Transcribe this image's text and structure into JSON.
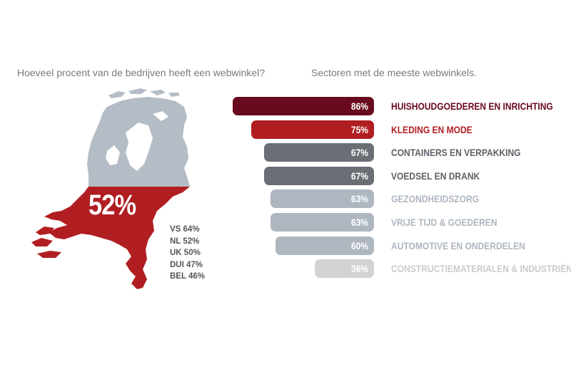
{
  "left_panel": {
    "question": "Hoeveel procent van de bedrijven heeft een webwinkel?",
    "headline_value": "52%",
    "comparison": [
      {
        "label": "VS 64%"
      },
      {
        "label": "NL 52%"
      },
      {
        "label": "UK 50%"
      },
      {
        "label": "DUI 47%"
      },
      {
        "label": "BEL 46%"
      }
    ],
    "colors": {
      "map_top": "#b4bcc5",
      "map_bottom": "#b01e22"
    }
  },
  "right_panel": {
    "question": "Sectoren met de meeste webwinkels."
  },
  "chart_data": {
    "type": "bar",
    "orientation": "horizontal",
    "title": "Sectoren met de meeste webwinkels.",
    "categories": [
      "HUISHOUDGOEDEREN EN INRICHTING",
      "KLEDING EN MODE",
      "CONTAINERS EN VERPAKKING",
      "VOEDSEL EN DRANK",
      "GEZONDHEIDSZORG",
      "VRIJE TIJD & GOEDEREN",
      "AUTOMOTIVE EN ONDERDELEN",
      "CONSTRUCTIEMATERIALEN & INDUSTRIËN"
    ],
    "values": [
      86,
      75,
      67,
      67,
      63,
      63,
      60,
      36
    ],
    "value_labels": [
      "86%",
      "75%",
      "67%",
      "67%",
      "63%",
      "63%",
      "60%",
      "36%"
    ],
    "unit": "%",
    "colors": [
      "#6a0a1e",
      "#b01e22",
      "#6b6e75",
      "#6b6e75",
      "#aeb6c0",
      "#aeb6c0",
      "#aeb6c0",
      "#d3d3d3"
    ],
    "label_colors": [
      "#6a0a1e",
      "#b01e22",
      "#5d6068",
      "#5d6068",
      "#aeb6c0",
      "#aeb6c0",
      "#aeb6c0",
      "#c9cbce"
    ],
    "bar_alignment": "right",
    "grid": false,
    "legend": "none"
  }
}
